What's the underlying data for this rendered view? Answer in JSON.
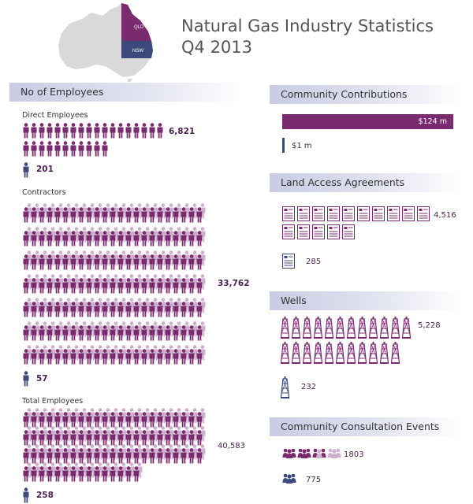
{
  "header": {
    "title_line1": "Natural Gas Industry Statistics",
    "title_line2": "Q4 2013",
    "map": {
      "state_qld": "QLD",
      "state_nsw": "NSW"
    }
  },
  "colors": {
    "primary": "#7a2a6e",
    "secondary": "#3b4a7a",
    "light": "#cdb0cc",
    "header_band": "#c9cbe3"
  },
  "employees": {
    "heading": "No of Employees",
    "direct": {
      "label": "Direct Employees",
      "value": "6,821",
      "icon_value": "201"
    },
    "contractors": {
      "label": "Contractors",
      "value": "33,762",
      "icon_value": "57"
    },
    "total": {
      "label": "Total Employees",
      "value": "40,583",
      "icon_value": "258"
    }
  },
  "community_contributions": {
    "heading": "Community Contributions",
    "bar_value": "$124 m",
    "small_value": "$1 m"
  },
  "land_access": {
    "heading": "Land Access Agreements",
    "value": "4,516",
    "icon_value": "285"
  },
  "wells": {
    "heading": "Wells",
    "value": "5,228",
    "icon_value": "232"
  },
  "consultation": {
    "heading": "Community Consultation Events",
    "value": "1803",
    "icon_value": "775"
  }
}
